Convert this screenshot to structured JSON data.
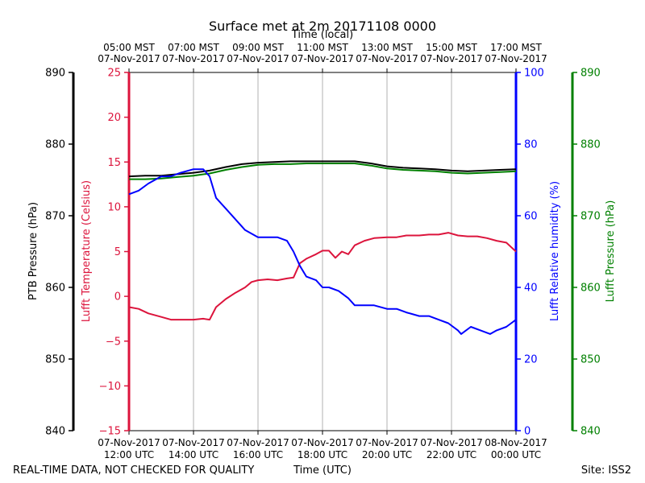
{
  "chart_data": {
    "type": "line",
    "title": "Surface met at 2m 20171108 0000",
    "top_axis_label": "Time (local)",
    "xlabel": "Time (UTC)",
    "footer_left": "REAL-TIME DATA, NOT CHECKED FOR QUALITY",
    "footer_right": "Site: ISS2",
    "x_range_hours": [
      0,
      12
    ],
    "top_ticks": [
      {
        "hour": 0,
        "line1": "05:00 MST",
        "line2": "07-Nov-2017"
      },
      {
        "hour": 2,
        "line1": "07:00 MST",
        "line2": "07-Nov-2017"
      },
      {
        "hour": 4,
        "line1": "09:00 MST",
        "line2": "07-Nov-2017"
      },
      {
        "hour": 6,
        "line1": "11:00 MST",
        "line2": "07-Nov-2017"
      },
      {
        "hour": 8,
        "line1": "13:00 MST",
        "line2": "07-Nov-2017"
      },
      {
        "hour": 10,
        "line1": "15:00 MST",
        "line2": "07-Nov-2017"
      },
      {
        "hour": 12,
        "line1": "17:00 MST",
        "line2": "07-Nov-2017"
      }
    ],
    "bottom_ticks": [
      {
        "hour": 0,
        "line1": "07-Nov-2017",
        "line2": "12:00 UTC"
      },
      {
        "hour": 2,
        "line1": "07-Nov-2017",
        "line2": "14:00 UTC"
      },
      {
        "hour": 4,
        "line1": "07-Nov-2017",
        "line2": "16:00 UTC"
      },
      {
        "hour": 6,
        "line1": "07-Nov-2017",
        "line2": "18:00 UTC"
      },
      {
        "hour": 8,
        "line1": "07-Nov-2017",
        "line2": "20:00 UTC"
      },
      {
        "hour": 10,
        "line1": "07-Nov-2017",
        "line2": "22:00 UTC"
      },
      {
        "hour": 12,
        "line1": "08-Nov-2017",
        "line2": "00:00 UTC"
      }
    ],
    "axes": {
      "ptb": {
        "label": "PTB Pressure (hPa)",
        "ylim": [
          840,
          890
        ],
        "ticks": [
          "840",
          "850",
          "860",
          "870",
          "880",
          "890"
        ],
        "tick_values": [
          840,
          850,
          860,
          870,
          880,
          890
        ],
        "color": "#000000"
      },
      "temp": {
        "label": "Lufft Temperature (Celsius)",
        "ylim": [
          -15,
          25
        ],
        "ticks": [
          "−15",
          "−10",
          "−5",
          "0",
          "5",
          "10",
          "15",
          "20",
          "25"
        ],
        "tick_values": [
          -15,
          -10,
          -5,
          0,
          5,
          10,
          15,
          20,
          25
        ],
        "color": "#dc143c"
      },
      "rh": {
        "label": "Lufft Relative humidity (%)",
        "ylim": [
          0,
          100
        ],
        "ticks": [
          "0",
          "20",
          "40",
          "60",
          "80",
          "100"
        ],
        "tick_values": [
          0,
          20,
          40,
          60,
          80,
          100
        ],
        "color": "#0000ff"
      },
      "lufft_p": {
        "label": "Lufft Pressure (hPa)",
        "ylim": [
          840,
          890
        ],
        "ticks": [
          "840",
          "850",
          "860",
          "870",
          "880",
          "890"
        ],
        "tick_values": [
          840,
          850,
          860,
          870,
          880,
          890
        ],
        "color": "#008000"
      }
    },
    "series": [
      {
        "name": "PTB Pressure",
        "axis": "ptb",
        "color": "#000000",
        "x": [
          0,
          0.5,
          1,
          1.5,
          2,
          2.5,
          3,
          3.5,
          4,
          4.5,
          5,
          5.5,
          6,
          6.5,
          7,
          7.5,
          8,
          8.5,
          9,
          9.5,
          10,
          10.5,
          11,
          11.5,
          12
        ],
        "values": [
          875.5,
          875.6,
          875.6,
          875.8,
          876.0,
          876.3,
          876.8,
          877.2,
          877.4,
          877.5,
          877.6,
          877.6,
          877.6,
          877.6,
          877.6,
          877.3,
          876.9,
          876.7,
          876.6,
          876.5,
          876.3,
          876.2,
          876.3,
          876.4,
          876.5
        ]
      },
      {
        "name": "Lufft Pressure",
        "axis": "lufft_p",
        "color": "#008000",
        "x": [
          0,
          0.5,
          1,
          1.5,
          2,
          2.5,
          3,
          3.5,
          4,
          4.5,
          5,
          5.5,
          6,
          6.5,
          7,
          7.5,
          8,
          8.5,
          9,
          9.5,
          10,
          10.5,
          11,
          11.5,
          12
        ],
        "values": [
          875.1,
          875.1,
          875.2,
          875.4,
          875.6,
          875.9,
          876.4,
          876.8,
          877.1,
          877.2,
          877.2,
          877.3,
          877.3,
          877.3,
          877.3,
          877.0,
          876.6,
          876.4,
          876.3,
          876.2,
          876.0,
          875.9,
          876.0,
          876.1,
          876.2
        ]
      },
      {
        "name": "Lufft Temperature",
        "axis": "temp",
        "color": "#dc143c",
        "x": [
          0,
          0.3,
          0.6,
          1.0,
          1.3,
          1.6,
          2.0,
          2.3,
          2.5,
          2.7,
          3.0,
          3.3,
          3.6,
          3.8,
          4.0,
          4.3,
          4.6,
          4.9,
          5.1,
          5.3,
          5.5,
          5.8,
          6.0,
          6.2,
          6.4,
          6.6,
          6.8,
          7.0,
          7.3,
          7.6,
          8.0,
          8.3,
          8.6,
          9.0,
          9.3,
          9.6,
          9.9,
          10.2,
          10.5,
          10.8,
          11.1,
          11.4,
          11.7,
          12.0
        ],
        "values": [
          -1.2,
          -1.4,
          -1.9,
          -2.3,
          -2.6,
          -2.6,
          -2.6,
          -2.5,
          -2.6,
          -1.2,
          -0.3,
          0.4,
          1.0,
          1.6,
          1.8,
          1.9,
          1.8,
          2.0,
          2.1,
          3.7,
          4.2,
          4.7,
          5.1,
          5.1,
          4.3,
          5.0,
          4.7,
          5.7,
          6.2,
          6.5,
          6.6,
          6.6,
          6.8,
          6.8,
          6.9,
          6.9,
          7.1,
          6.8,
          6.7,
          6.7,
          6.5,
          6.2,
          6.0,
          5.0
        ]
      },
      {
        "name": "Lufft Relative humidity",
        "axis": "rh",
        "color": "#0000ff",
        "x": [
          0,
          0.3,
          0.6,
          1.0,
          1.3,
          1.6,
          2.0,
          2.3,
          2.5,
          2.7,
          3.0,
          3.3,
          3.6,
          3.8,
          4.0,
          4.3,
          4.6,
          4.9,
          5.1,
          5.3,
          5.5,
          5.8,
          6.0,
          6.2,
          6.5,
          6.8,
          7.0,
          7.3,
          7.6,
          8.0,
          8.3,
          8.6,
          9.0,
          9.3,
          9.6,
          9.9,
          10.2,
          10.3,
          10.6,
          10.9,
          11.2,
          11.4,
          11.7,
          12.0
        ],
        "values": [
          66,
          67,
          69,
          71,
          71,
          72,
          73,
          73,
          71,
          65,
          62,
          59,
          56,
          55,
          54,
          54,
          54,
          53,
          50,
          46,
          43,
          42,
          40,
          40,
          39,
          37,
          35,
          35,
          35,
          34,
          34,
          33,
          32,
          32,
          31,
          30,
          28,
          27,
          29,
          28,
          27,
          28,
          29,
          31
        ]
      }
    ]
  }
}
